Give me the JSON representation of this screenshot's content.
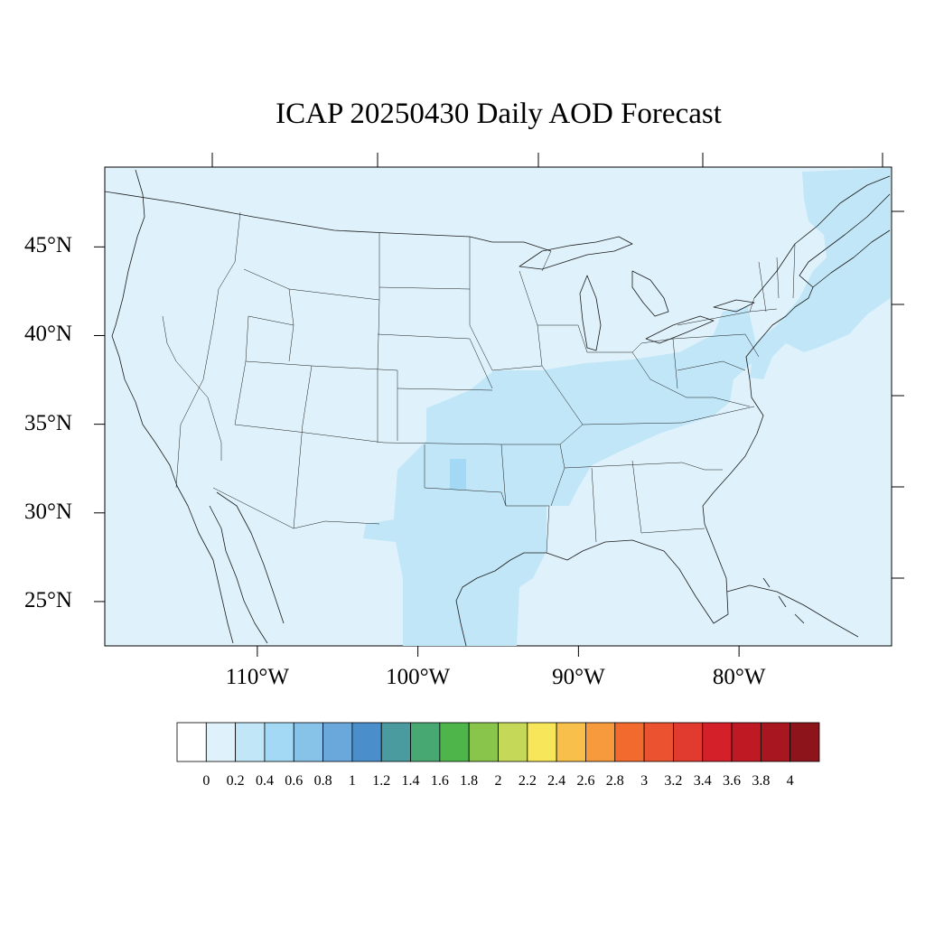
{
  "title": "ICAP 20250430 Daily AOD Forecast",
  "map": {
    "projection": "equirectangular",
    "lon_range": [
      -119.5,
      -70.5
    ],
    "lat_range": [
      22.5,
      49.5
    ],
    "lat_labels": [
      "45°N",
      "40°N",
      "35°N",
      "30°N",
      "25°N"
    ],
    "lon_labels": [
      "110°W",
      "100°W",
      "90°W",
      "80°W"
    ],
    "background_color": "#dff2fb",
    "aod_regions": [
      {
        "name": "south-central-plume",
        "aod_bin": "0.2-0.4",
        "color": "#c0e6f7"
      },
      {
        "name": "oklahoma-core",
        "aod_bin": "0.4-0.6",
        "color": "#a3d9f4"
      },
      {
        "name": "northeast-atlantic",
        "aod_bin": "0.2-0.4",
        "color": "#c0e6f7"
      }
    ]
  },
  "colorbar": {
    "levels": [
      "0",
      "0.2",
      "0.4",
      "0.6",
      "0.8",
      "1",
      "1.2",
      "1.4",
      "1.6",
      "1.8",
      "2",
      "2.2",
      "2.4",
      "2.6",
      "2.8",
      "3",
      "3.2",
      "3.4",
      "3.6",
      "3.8",
      "4"
    ],
    "colors": [
      "#ffffff",
      "#dff2fb",
      "#c0e6f7",
      "#a3d9f4",
      "#87c2e8",
      "#6aa8dc",
      "#4a8fcc",
      "#4a9b9f",
      "#48a872",
      "#4db549",
      "#88c54a",
      "#c5d857",
      "#f8e65a",
      "#f8c04b",
      "#f79a3e",
      "#f36a2e",
      "#ea5230",
      "#e13b2f",
      "#d42029",
      "#bf1a24",
      "#a8171f",
      "#8e141b"
    ]
  }
}
